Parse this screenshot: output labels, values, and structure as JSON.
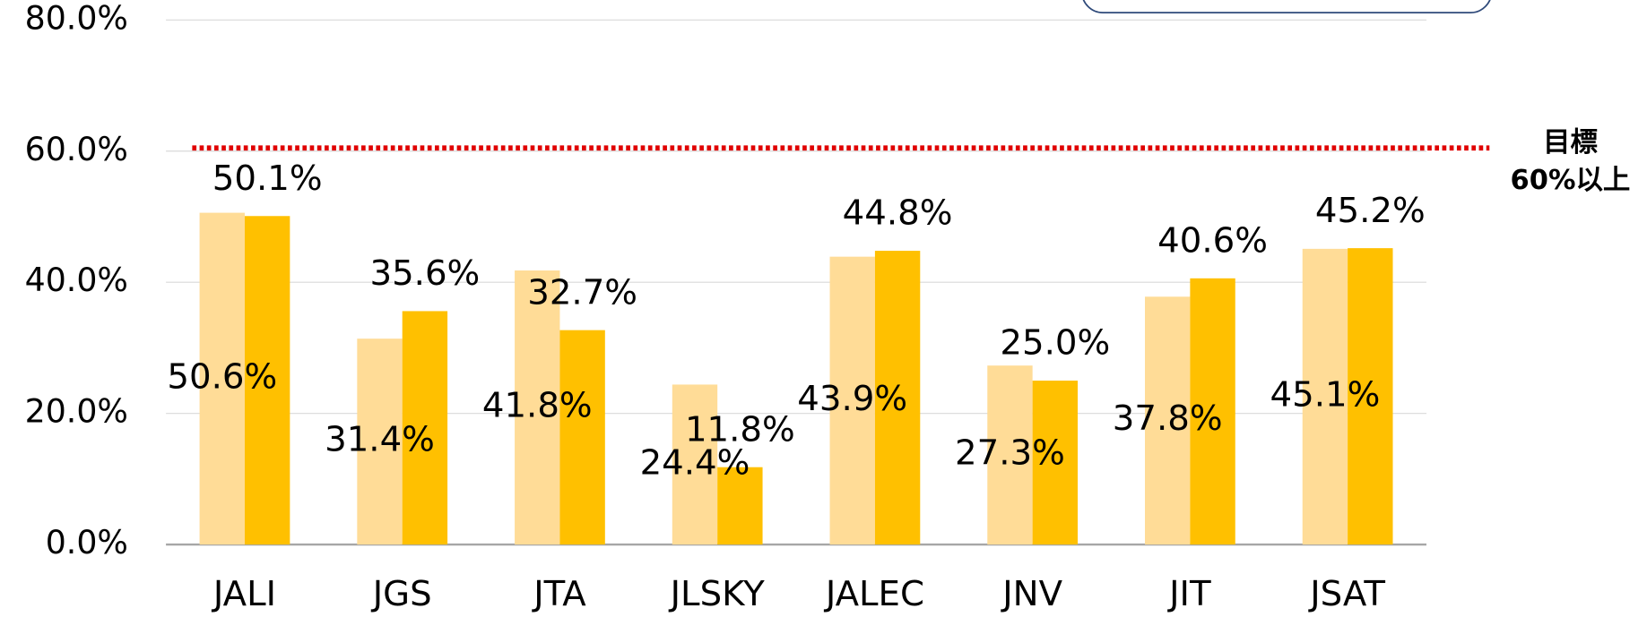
{
  "chart_data": {
    "type": "bar",
    "categories": [
      "JALI",
      "JGS",
      "JTA",
      "JLSKY",
      "JALEC",
      "JNV",
      "JIT",
      "JSAT"
    ],
    "series": [
      {
        "color": "#ffdc97",
        "values": [
          50.6,
          31.4,
          41.8,
          24.4,
          43.9,
          27.3,
          37.8,
          45.1
        ],
        "value_labels": [
          "50.6%",
          "31.4%",
          "41.8%",
          "24.4%",
          "43.9%",
          "27.3%",
          "37.8%",
          "45.1%"
        ]
      },
      {
        "color": "#ffc000",
        "values": [
          50.1,
          35.6,
          32.7,
          11.8,
          44.8,
          25.0,
          40.6,
          45.2
        ],
        "value_labels": [
          "50.1%",
          "35.6%",
          "32.7%",
          "11.8%",
          "44.8%",
          "25.0%",
          "40.6%",
          "45.2%"
        ]
      }
    ],
    "ylim": [
      0,
      80
    ],
    "yticks": [
      {
        "value": 0,
        "label": "0.0%"
      },
      {
        "value": 20,
        "label": "20.0%"
      },
      {
        "value": 40,
        "label": "40.0%"
      },
      {
        "value": 60,
        "label": "60.0%"
      },
      {
        "value": 80,
        "label": "80.0%"
      }
    ],
    "grid": true,
    "target": {
      "value": 60,
      "color": "#e00000",
      "label_lines": [
        "目標",
        "60%以上"
      ]
    }
  }
}
